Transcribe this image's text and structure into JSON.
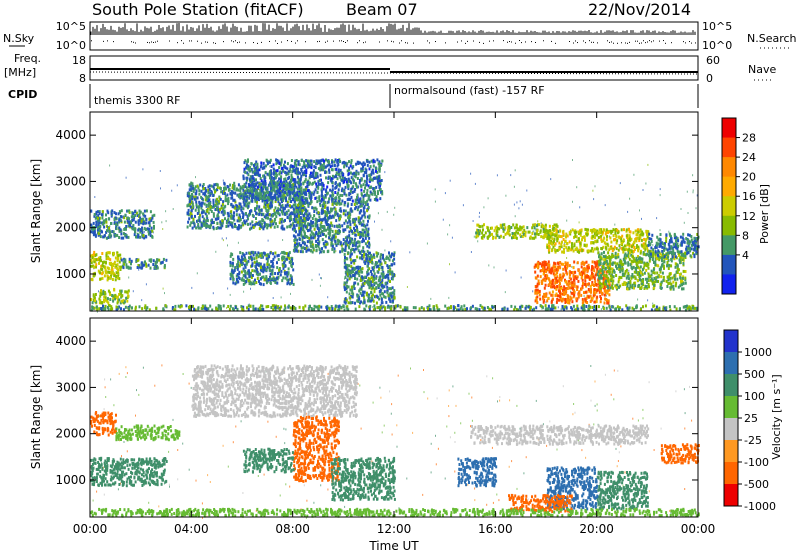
{
  "header": {
    "station": "South Pole Station (fitACF)",
    "beam": "Beam 07",
    "date": "22/Nov/2014"
  },
  "ancillary": {
    "nsky_label": "N.Sky",
    "nsearch_label": "N.Search",
    "freq_label": "Freq.",
    "freq_unit": "[MHz]",
    "nave_label": "Nave",
    "cpid_label": "CPID",
    "nsky_ticks": [
      "10^5",
      "10^0"
    ],
    "nsearch_ticks": [
      "10^5",
      "10^0"
    ],
    "freq_ticks": [
      "18",
      "8"
    ],
    "nave_ticks": [
      "60",
      "0"
    ],
    "cpid_segments": [
      {
        "label": "themis 3300 RF",
        "start": "00:00",
        "end": "12:00"
      },
      {
        "label": "normalsound (fast) -157 RF",
        "start": "12:00",
        "end": "24:00"
      }
    ]
  },
  "colorbars": {
    "power": {
      "label": "Power [dB]",
      "ticks": [
        "28",
        "24",
        "20",
        "16",
        "12",
        "8",
        "4"
      ],
      "colors": [
        "#ee0000",
        "#ff4400",
        "#ff8800",
        "#ffaa00",
        "#cccc00",
        "#88bb00",
        "#449966",
        "#2255bb",
        "#1122ee"
      ]
    },
    "velocity": {
      "label": "Velocity [m s⁻¹]",
      "ticks": [
        "1000",
        "500",
        "100",
        "25",
        "-25",
        "-100",
        "-500",
        "-1000"
      ],
      "colors": [
        "#2233cc",
        "#2d6fb0",
        "#3f8f6a",
        "#66bb33",
        "#c4c4c4",
        "#ff9922",
        "#ff6600",
        "#ee0000"
      ]
    }
  },
  "chart_data": [
    {
      "type": "heatmap",
      "title": "Power",
      "xlabel": "Time UT",
      "ylabel": "Slant Range [km]",
      "x_ticks": [
        "00:00",
        "04:00",
        "08:00",
        "12:00",
        "16:00",
        "20:00",
        "00:00"
      ],
      "y_ticks": [
        1000,
        2000,
        3000,
        4000
      ],
      "x_range_hours": [
        0,
        24
      ],
      "y_range_km": [
        200,
        4500
      ],
      "regions": [
        {
          "t0": 0.0,
          "t1": 2.5,
          "r0": 1800,
          "r1": 2400,
          "value": 6
        },
        {
          "t0": 0.0,
          "t1": 1.2,
          "r0": 900,
          "r1": 1500,
          "value": 14
        },
        {
          "t0": 1.2,
          "t1": 3.0,
          "r0": 1150,
          "r1": 1350,
          "value": 6
        },
        {
          "t0": 0.0,
          "t1": 1.5,
          "r0": 400,
          "r1": 700,
          "value": 12
        },
        {
          "t0": 3.8,
          "t1": 8.5,
          "r0": 2000,
          "r1": 3000,
          "value": 6
        },
        {
          "t0": 6.0,
          "t1": 11.5,
          "r0": 2600,
          "r1": 3500,
          "value": 5
        },
        {
          "t0": 8.0,
          "t1": 11.0,
          "r0": 1500,
          "r1": 2600,
          "value": 6
        },
        {
          "t0": 5.5,
          "t1": 8.0,
          "r0": 800,
          "r1": 1500,
          "value": 6
        },
        {
          "t0": 10.0,
          "t1": 12.0,
          "r0": 400,
          "r1": 1500,
          "value": 7
        },
        {
          "t0": 15.2,
          "t1": 18.5,
          "r0": 1800,
          "r1": 2100,
          "value": 12
        },
        {
          "t0": 18.0,
          "t1": 22.0,
          "r0": 1500,
          "r1": 2000,
          "value": 14
        },
        {
          "t0": 17.5,
          "t1": 20.5,
          "r0": 400,
          "r1": 1300,
          "value": 24
        },
        {
          "t0": 20.0,
          "t1": 23.5,
          "r0": 700,
          "r1": 1500,
          "value": 10
        },
        {
          "t0": 22.0,
          "t1": 24.0,
          "r0": 1400,
          "r1": 1900,
          "value": 6
        },
        {
          "t0": 0.0,
          "t1": 24.0,
          "r0": 250,
          "r1": 350,
          "value": 8
        }
      ]
    },
    {
      "type": "heatmap",
      "title": "Velocity",
      "xlabel": "Time UT",
      "ylabel": "Slant Range [km]",
      "x_ticks": [
        "00:00",
        "04:00",
        "08:00",
        "12:00",
        "16:00",
        "20:00",
        "00:00"
      ],
      "y_ticks": [
        1000,
        2000,
        3000,
        4000
      ],
      "x_range_hours": [
        0,
        24
      ],
      "y_range_km": [
        200,
        4500
      ],
      "regions": [
        {
          "t0": 0.0,
          "t1": 1.0,
          "r0": 2000,
          "r1": 2500,
          "value": -300
        },
        {
          "t0": 1.0,
          "t1": 3.5,
          "r0": 1900,
          "r1": 2200,
          "value": 60
        },
        {
          "t0": 0.0,
          "t1": 3.0,
          "r0": 900,
          "r1": 1500,
          "value": 200
        },
        {
          "t0": 4.0,
          "t1": 10.5,
          "r0": 2400,
          "r1": 3500,
          "value": 0
        },
        {
          "t0": 8.0,
          "t1": 9.8,
          "r0": 1000,
          "r1": 2400,
          "value": -300
        },
        {
          "t0": 6.0,
          "t1": 8.0,
          "r0": 1200,
          "r1": 1700,
          "value": 300
        },
        {
          "t0": 9.5,
          "t1": 12.0,
          "r0": 600,
          "r1": 1500,
          "value": 150
        },
        {
          "t0": 14.5,
          "t1": 16.0,
          "r0": 900,
          "r1": 1500,
          "value": 800
        },
        {
          "t0": 15.0,
          "t1": 22.0,
          "r0": 1800,
          "r1": 2200,
          "value": 0
        },
        {
          "t0": 18.0,
          "t1": 20.0,
          "r0": 400,
          "r1": 1300,
          "value": 700
        },
        {
          "t0": 20.0,
          "t1": 22.0,
          "r0": 400,
          "r1": 1200,
          "value": 200
        },
        {
          "t0": 16.5,
          "t1": 19.0,
          "r0": 350,
          "r1": 700,
          "value": -400
        },
        {
          "t0": 22.5,
          "t1": 24.0,
          "r0": 1400,
          "r1": 1800,
          "value": -150
        },
        {
          "t0": 0.0,
          "t1": 24.0,
          "r0": 250,
          "r1": 400,
          "value": 60
        }
      ]
    }
  ]
}
